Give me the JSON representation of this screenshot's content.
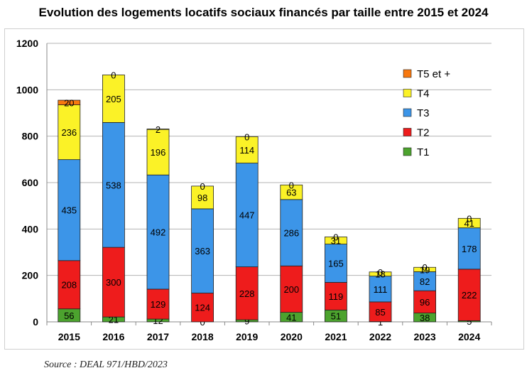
{
  "title": "Evolution des logements locatifs sociaux financés par taille entre 2015 et 2024",
  "source": "Source : DEAL 971/HBD/2023",
  "chart_data": {
    "type": "bar",
    "stacked": true,
    "categories": [
      "2015",
      "2016",
      "2017",
      "2018",
      "2019",
      "2020",
      "2021",
      "2022",
      "2023",
      "2024"
    ],
    "ylim": [
      0,
      1200
    ],
    "yticks": [
      0,
      200,
      400,
      600,
      800,
      1000,
      1200
    ],
    "grid": true,
    "legend_position": "top-right",
    "series": [
      {
        "name": "T1",
        "color": "#4ca32e",
        "values": [
          56,
          21,
          12,
          0,
          9,
          41,
          51,
          1,
          38,
          5
        ]
      },
      {
        "name": "T2",
        "color": "#ee1c1c",
        "values": [
          208,
          300,
          129,
          124,
          228,
          200,
          119,
          85,
          96,
          222
        ]
      },
      {
        "name": "T3",
        "color": "#3c95e8",
        "values": [
          435,
          538,
          492,
          363,
          447,
          286,
          165,
          111,
          82,
          178
        ]
      },
      {
        "name": "T4",
        "color": "#fbf227",
        "values": [
          236,
          205,
          196,
          98,
          114,
          63,
          31,
          18,
          19,
          41
        ]
      },
      {
        "name": "T5 et +",
        "color": "#f7780f",
        "values": [
          20,
          0,
          2,
          0,
          0,
          0,
          0,
          0,
          0,
          0
        ]
      }
    ]
  }
}
